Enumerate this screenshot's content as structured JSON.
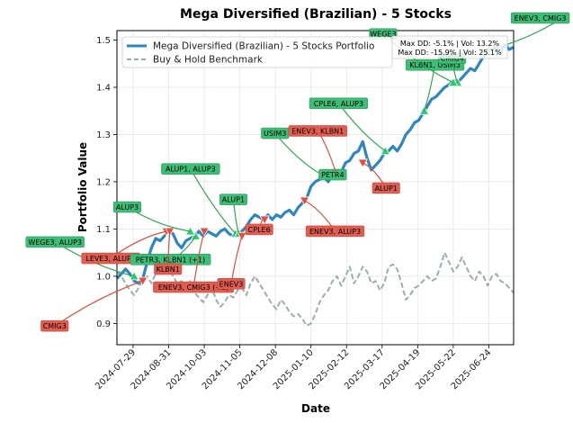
{
  "chart_data": {
    "type": "line",
    "title": "Mega Diversified (Brazilian) - 5 Stocks",
    "xlabel": "Date",
    "ylabel": "Portfolio Value",
    "x_ticks": [
      "2024-07-29",
      "2024-08-31",
      "2024-10-03",
      "2024-11-05",
      "2024-12-08",
      "2025-01-10",
      "2025-02-12",
      "2025-03-17",
      "2025-04-19",
      "2025-05-22",
      "2025-06-24"
    ],
    "y_ticks": [
      "0.9",
      "1.0",
      "1.1",
      "1.2",
      "1.3",
      "1.4",
      "1.5"
    ],
    "xlim": [
      "2024-07-14",
      "2025-07-17"
    ],
    "ylim": [
      0.855,
      1.52
    ],
    "grid": true,
    "legend_position": "top-left",
    "series": [
      {
        "name": "Mega Diversified (Brazilian) - 5 Stocks Portfolio",
        "color": "#2e86c1",
        "style": "solid",
        "points": [
          [
            "2024-07-14",
            0.995
          ],
          [
            "2024-07-18",
            1.005
          ],
          [
            "2024-07-22",
            1.015
          ],
          [
            "2024-07-26",
            1.005
          ],
          [
            "2024-07-30",
            0.99
          ],
          [
            "2024-08-03",
            0.985
          ],
          [
            "2024-08-07",
            0.995
          ],
          [
            "2024-08-11",
            1.03
          ],
          [
            "2024-08-15",
            1.06
          ],
          [
            "2024-08-19",
            1.08
          ],
          [
            "2024-08-23",
            1.075
          ],
          [
            "2024-08-27",
            1.085
          ],
          [
            "2024-08-31",
            1.095
          ],
          [
            "2024-09-04",
            1.09
          ],
          [
            "2024-09-08",
            1.07
          ],
          [
            "2024-09-12",
            1.06
          ],
          [
            "2024-09-16",
            1.075
          ],
          [
            "2024-09-20",
            1.08
          ],
          [
            "2024-09-24",
            1.085
          ],
          [
            "2024-09-28",
            1.095
          ],
          [
            "2024-10-02",
            1.085
          ],
          [
            "2024-10-06",
            1.095
          ],
          [
            "2024-10-10",
            1.09
          ],
          [
            "2024-10-14",
            1.085
          ],
          [
            "2024-10-18",
            1.095
          ],
          [
            "2024-10-22",
            1.1
          ],
          [
            "2024-10-26",
            1.09
          ],
          [
            "2024-10-30",
            1.085
          ],
          [
            "2024-11-03",
            1.09
          ],
          [
            "2024-11-07",
            1.095
          ],
          [
            "2024-11-11",
            1.105
          ],
          [
            "2024-11-15",
            1.12
          ],
          [
            "2024-11-19",
            1.13
          ],
          [
            "2024-11-23",
            1.125
          ],
          [
            "2024-11-27",
            1.12
          ],
          [
            "2024-12-01",
            1.13
          ],
          [
            "2024-12-05",
            1.12
          ],
          [
            "2024-12-09",
            1.13
          ],
          [
            "2024-12-13",
            1.125
          ],
          [
            "2024-12-17",
            1.135
          ],
          [
            "2024-12-21",
            1.14
          ],
          [
            "2024-12-25",
            1.13
          ],
          [
            "2024-12-29",
            1.145
          ],
          [
            "2025-01-02",
            1.155
          ],
          [
            "2025-01-06",
            1.165
          ],
          [
            "2025-01-10",
            1.19
          ],
          [
            "2025-01-14",
            1.2
          ],
          [
            "2025-01-18",
            1.205
          ],
          [
            "2025-01-22",
            1.21
          ],
          [
            "2025-01-26",
            1.2
          ],
          [
            "2025-01-30",
            1.215
          ],
          [
            "2025-02-03",
            1.215
          ],
          [
            "2025-02-07",
            1.22
          ],
          [
            "2025-02-11",
            1.24
          ],
          [
            "2025-02-15",
            1.245
          ],
          [
            "2025-02-19",
            1.26
          ],
          [
            "2025-02-23",
            1.265
          ],
          [
            "2025-02-27",
            1.285
          ],
          [
            "2025-03-03",
            1.25
          ],
          [
            "2025-03-07",
            1.225
          ],
          [
            "2025-03-11",
            1.235
          ],
          [
            "2025-03-15",
            1.245
          ],
          [
            "2025-03-19",
            1.26
          ],
          [
            "2025-03-23",
            1.265
          ],
          [
            "2025-03-27",
            1.275
          ],
          [
            "2025-03-31",
            1.265
          ],
          [
            "2025-04-04",
            1.28
          ],
          [
            "2025-04-08",
            1.3
          ],
          [
            "2025-04-12",
            1.31
          ],
          [
            "2025-04-16",
            1.325
          ],
          [
            "2025-04-20",
            1.33
          ],
          [
            "2025-04-24",
            1.345
          ],
          [
            "2025-04-28",
            1.36
          ],
          [
            "2025-05-02",
            1.375
          ],
          [
            "2025-05-06",
            1.38
          ],
          [
            "2025-05-10",
            1.39
          ],
          [
            "2025-05-14",
            1.4
          ],
          [
            "2025-05-18",
            1.405
          ],
          [
            "2025-05-22",
            1.415
          ],
          [
            "2025-05-26",
            1.41
          ],
          [
            "2025-05-30",
            1.42
          ],
          [
            "2025-06-03",
            1.43
          ],
          [
            "2025-06-07",
            1.44
          ],
          [
            "2025-06-11",
            1.435
          ],
          [
            "2025-06-15",
            1.45
          ],
          [
            "2025-06-19",
            1.465
          ],
          [
            "2025-06-23",
            1.475
          ],
          [
            "2025-06-27",
            1.48
          ],
          [
            "2025-07-01",
            1.485
          ],
          [
            "2025-07-05",
            1.475
          ],
          [
            "2025-07-09",
            1.49
          ],
          [
            "2025-07-13",
            1.48
          ],
          [
            "2025-07-17",
            1.485
          ]
        ]
      },
      {
        "name": "Buy & Hold Benchmark",
        "color": "#9aaeb0",
        "style": "dashed",
        "points": [
          [
            "2024-07-14",
            1.01
          ],
          [
            "2024-07-18",
            1.0
          ],
          [
            "2024-07-22",
            0.985
          ],
          [
            "2024-07-26",
            0.97
          ],
          [
            "2024-07-30",
            0.96
          ],
          [
            "2024-08-03",
            0.975
          ],
          [
            "2024-08-07",
            0.99
          ],
          [
            "2024-08-11",
            1.0
          ],
          [
            "2024-08-15",
            0.985
          ],
          [
            "2024-08-19",
            1.005
          ],
          [
            "2024-08-23",
            1.02
          ],
          [
            "2024-08-27",
            1.03
          ],
          [
            "2024-08-31",
            1.02
          ],
          [
            "2024-09-04",
            1.0
          ],
          [
            "2024-09-08",
            0.985
          ],
          [
            "2024-09-12",
            0.99
          ],
          [
            "2024-09-16",
            0.975
          ],
          [
            "2024-09-20",
            0.99
          ],
          [
            "2024-09-24",
            0.965
          ],
          [
            "2024-09-28",
            0.955
          ],
          [
            "2024-10-02",
            0.945
          ],
          [
            "2024-10-06",
            0.96
          ],
          [
            "2024-10-10",
            0.975
          ],
          [
            "2024-10-14",
            0.95
          ],
          [
            "2024-10-18",
            0.935
          ],
          [
            "2024-10-22",
            0.945
          ],
          [
            "2024-10-26",
            0.96
          ],
          [
            "2024-10-30",
            0.955
          ],
          [
            "2024-11-03",
            0.97
          ],
          [
            "2024-11-07",
            0.975
          ],
          [
            "2024-11-11",
            0.96
          ],
          [
            "2024-11-15",
            0.985
          ],
          [
            "2024-11-19",
            1.0
          ],
          [
            "2024-11-23",
            0.985
          ],
          [
            "2024-11-27",
            0.97
          ],
          [
            "2024-12-01",
            0.955
          ],
          [
            "2024-12-05",
            0.94
          ],
          [
            "2024-12-09",
            0.93
          ],
          [
            "2024-12-13",
            0.95
          ],
          [
            "2024-12-17",
            0.94
          ],
          [
            "2024-12-21",
            0.925
          ],
          [
            "2024-12-25",
            0.915
          ],
          [
            "2024-12-29",
            0.92
          ],
          [
            "2025-01-02",
            0.91
          ],
          [
            "2025-01-06",
            0.895
          ],
          [
            "2025-01-10",
            0.9
          ],
          [
            "2025-01-14",
            0.92
          ],
          [
            "2025-01-18",
            0.945
          ],
          [
            "2025-01-22",
            0.96
          ],
          [
            "2025-01-26",
            0.97
          ],
          [
            "2025-01-30",
            0.99
          ],
          [
            "2025-02-03",
            1.0
          ],
          [
            "2025-02-07",
            0.98
          ],
          [
            "2025-02-11",
            1.0
          ],
          [
            "2025-02-15",
            1.02
          ],
          [
            "2025-02-19",
            0.985
          ],
          [
            "2025-02-23",
            1.0
          ],
          [
            "2025-02-27",
            1.02
          ],
          [
            "2025-03-03",
            1.01
          ],
          [
            "2025-03-07",
            0.985
          ],
          [
            "2025-03-11",
            0.99
          ],
          [
            "2025-03-15",
            0.97
          ],
          [
            "2025-03-19",
            0.985
          ],
          [
            "2025-03-23",
            1.02
          ],
          [
            "2025-03-27",
            1.025
          ],
          [
            "2025-03-31",
            1.015
          ],
          [
            "2025-04-04",
            0.985
          ],
          [
            "2025-04-08",
            0.95
          ],
          [
            "2025-04-12",
            0.96
          ],
          [
            "2025-04-16",
            0.975
          ],
          [
            "2025-04-20",
            0.98
          ],
          [
            "2025-04-24",
            0.99
          ],
          [
            "2025-04-28",
            1.0
          ],
          [
            "2025-05-02",
            0.99
          ],
          [
            "2025-05-06",
            0.995
          ],
          [
            "2025-05-10",
            1.02
          ],
          [
            "2025-05-14",
            1.05
          ],
          [
            "2025-05-18",
            1.03
          ],
          [
            "2025-05-22",
            1.01
          ],
          [
            "2025-05-26",
            1.02
          ],
          [
            "2025-05-30",
            1.04
          ],
          [
            "2025-06-03",
            1.02
          ],
          [
            "2025-06-07",
            1.0
          ],
          [
            "2025-06-11",
            0.99
          ],
          [
            "2025-06-15",
            1.01
          ],
          [
            "2025-06-19",
            1.0
          ],
          [
            "2025-06-23",
            0.98
          ],
          [
            "2025-06-27",
            1.0
          ],
          [
            "2025-07-01",
            1.005
          ],
          [
            "2025-07-05",
            0.99
          ],
          [
            "2025-07-09",
            0.985
          ],
          [
            "2025-07-13",
            0.975
          ],
          [
            "2025-07-17",
            0.965
          ]
        ]
      }
    ],
    "stats_box_lines": [
      "Max DD: -5.1% | Vol: 13.2%",
      "Max DD: -15.9% | Vol: 25.1%"
    ],
    "annotations": [
      {
        "text": "WEGE3, ALUP3",
        "kind": "buy",
        "date": "2024-07-30",
        "value": 1.0
      },
      {
        "text": "CMIG3",
        "kind": "sell",
        "date": "2024-08-07",
        "value": 0.99
      },
      {
        "text": "LEVE3, ALUP1",
        "kind": "sell",
        "date": "2024-08-29",
        "value": 1.095
      },
      {
        "text": "PETR3, KLBN1 (+1)",
        "kind": "buy",
        "date": "2024-09-25",
        "value": 1.085
      },
      {
        "text": "ALUP1, ALUP3",
        "kind": "buy",
        "date": "2024-11-01",
        "value": 1.09
      },
      {
        "text": "ALUP3",
        "kind": "buy",
        "date": "2024-09-20",
        "value": 1.095
      },
      {
        "text": "KLBN1",
        "kind": "sell",
        "date": "2024-09-01",
        "value": 1.095
      },
      {
        "text": "ENEV3, CMIG3 (+2)",
        "kind": "sell",
        "date": "2024-10-03",
        "value": 1.095
      },
      {
        "text": "ALUP1",
        "kind": "buy",
        "date": "2024-11-04",
        "value": 1.09
      },
      {
        "text": "CPLE6",
        "kind": "sell",
        "date": "2024-11-28",
        "value": 1.12
      },
      {
        "text": "ENEV3",
        "kind": "sell",
        "date": "2024-11-07",
        "value": 1.085
      },
      {
        "text": "USIM3",
        "kind": "buy",
        "date": "2025-01-20",
        "value": 1.215
      },
      {
        "text": "CPLE6, ALUP3",
        "kind": "buy",
        "date": "2025-03-20",
        "value": 1.265
      },
      {
        "text": "PETR4",
        "kind": "buy",
        "date": "2025-01-26",
        "value": 1.215
      },
      {
        "text": "ENEV3, KLBN1",
        "kind": "sell",
        "date": "2025-02-02",
        "value": 1.22
      },
      {
        "text": "ENEV3, ALUP3",
        "kind": "sell",
        "date": "2025-01-04",
        "value": 1.16
      },
      {
        "text": "ALUP1",
        "kind": "sell",
        "date": "2025-02-27",
        "value": 1.24
      },
      {
        "text": "KLBN1, USIM3",
        "kind": "buy",
        "date": "2025-04-25",
        "value": 1.35
      },
      {
        "text": "CMIG4",
        "kind": "buy",
        "date": "2025-05-26",
        "value": 1.41
      },
      {
        "text": "WEGE3",
        "kind": "buy",
        "date": "2025-05-22",
        "value": 1.41
      },
      {
        "text": "ENEV3, CMIG3",
        "kind": "buy",
        "date": "2025-06-24",
        "value": 1.48
      }
    ]
  },
  "colors": {
    "buy_marker": "#2ecc71",
    "sell_marker": "#e74c3c",
    "buy_box": "#3dbe76",
    "sell_box": "#e25d50",
    "buy_line": "#2ea84f",
    "sell_line": "#d9503f"
  }
}
